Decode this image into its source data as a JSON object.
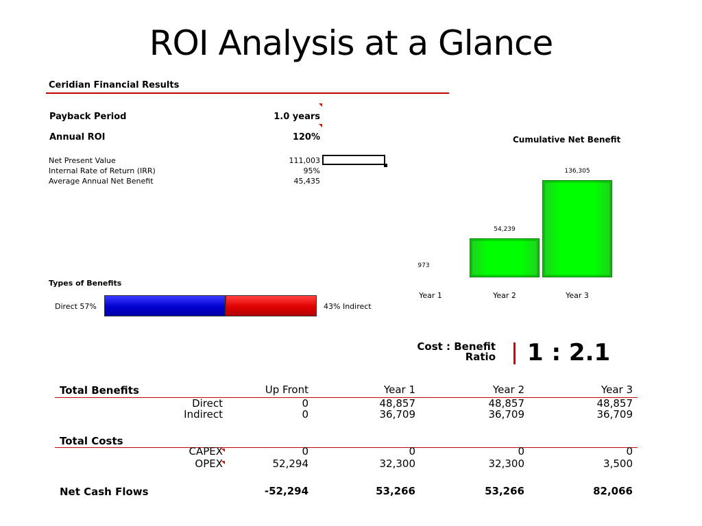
{
  "title": "ROI Analysis at a Glance",
  "results": {
    "heading": "Ceridian Financial Results",
    "payback_label": "Payback Period",
    "payback_value": "1.0 years",
    "roi_label": "Annual ROI",
    "roi_value": "120%",
    "metrics": [
      {
        "label": "Net Present Value",
        "value": "111,003"
      },
      {
        "label": "Internal Rate of Return (IRR)",
        "value": "95%"
      },
      {
        "label": "Average Annual Net Benefit",
        "value": "45,435"
      }
    ]
  },
  "benefits_types": {
    "heading": "Types of Benefits",
    "direct_label": "Direct 57%",
    "indirect_label": "43% Indirect",
    "direct_share": 57,
    "indirect_share": 43,
    "colors": {
      "direct": "#0000e0",
      "indirect": "#e00000"
    }
  },
  "chart_data": {
    "type": "bar",
    "title": "Cumulative Net Benefit",
    "categories": [
      "Year 1",
      "Year 2",
      "Year 3"
    ],
    "values": [
      973,
      54239,
      136305
    ],
    "data_labels": [
      "973",
      "54,239",
      "136,305"
    ],
    "color": "#00ff00",
    "grid": false,
    "legend": "none"
  },
  "ratio": {
    "label_line1": "Cost : Benefit",
    "label_line2": "Ratio",
    "value": "1 : 2.1"
  },
  "table": {
    "headers": [
      "Total Benefits",
      "Up Front",
      "Year 1",
      "Year 2",
      "Year 3"
    ],
    "benefit_rows": [
      {
        "label": "Direct",
        "values": [
          "0",
          "48,857",
          "48,857",
          "48,857"
        ]
      },
      {
        "label": "Indirect",
        "values": [
          "0",
          "36,709",
          "36,709",
          "36,709"
        ]
      }
    ],
    "costs_heading": "Total Costs",
    "cost_rows": [
      {
        "label": "CAPEX",
        "values": [
          "0",
          "0",
          "0",
          "0"
        ]
      },
      {
        "label": "OPEX",
        "values": [
          "52,294",
          "32,300",
          "32,300",
          "3,500"
        ]
      }
    ],
    "net_label": "Net Cash Flows",
    "net_values": [
      "-52,294",
      "53,266",
      "53,266",
      "82,066"
    ]
  }
}
